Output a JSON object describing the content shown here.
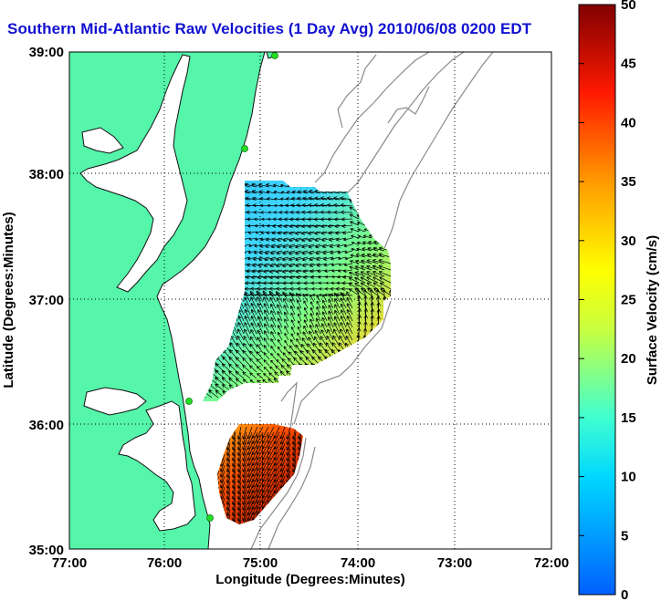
{
  "title": "Southern Mid-Atlantic Raw Velocities (1 Day Avg) 2010/06/08 0200 EDT",
  "x_axis": {
    "label": "Longitude (Degrees:Minutes)",
    "ticks": [
      "77:00",
      "76:00",
      "75:00",
      "74:00",
      "73:00",
      "72:00"
    ]
  },
  "y_axis": {
    "label": "Latitude (Degrees:Minutes)",
    "ticks": [
      "39:00",
      "38:00",
      "37:00",
      "36:00",
      "35:00"
    ]
  },
  "colorbar": {
    "label": "Surface Velocity (cm/s)",
    "ticks": [
      "50",
      "45",
      "40",
      "35",
      "30",
      "25",
      "20",
      "15",
      "10",
      "5",
      "0"
    ],
    "min": 0,
    "max": 50
  },
  "colors": {
    "land": "#55f5aa",
    "coast_outline": "#111111",
    "bathymetry": "#888888",
    "station": "#22dd22",
    "title": "#1010d0"
  }
}
